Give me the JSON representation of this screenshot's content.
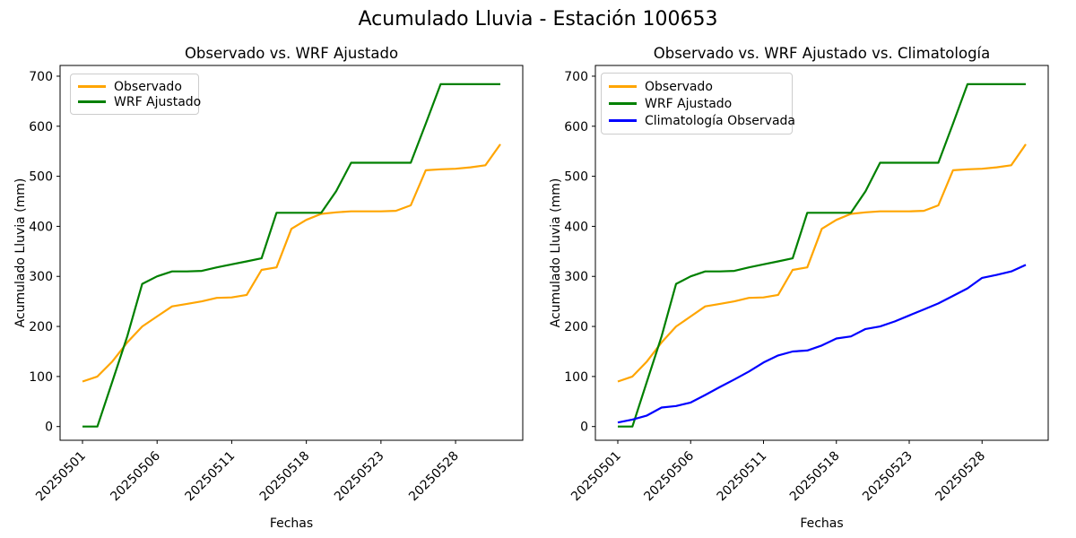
{
  "figure": {
    "suptitle": "Acumulado Lluvia - Estación 100653",
    "background": "#ffffff"
  },
  "axis": {
    "y_ticks": [
      0,
      100,
      200,
      300,
      400,
      500,
      600,
      700
    ],
    "x_tick_indices": [
      0,
      5,
      10,
      15,
      20,
      25
    ]
  },
  "colors": {
    "observado": "#FFA500",
    "wrf_ajustado": "#008000",
    "climatologia": "#0000FF",
    "axes": "#000000",
    "legend_border": "#cccccc"
  },
  "chart_data": [
    {
      "type": "line",
      "title": "Observado vs. WRF Ajustado",
      "xlabel": "Fechas",
      "ylabel": "Acumulado Lluvia (mm)",
      "ylim": [
        0,
        700
      ],
      "grid": false,
      "legend_position": "upper left",
      "x_tick_labels": [
        "20250501",
        "20250506",
        "20250511",
        "20250518",
        "20250523",
        "20250528"
      ],
      "n_points": 29,
      "series": [
        {
          "name": "Observado",
          "color": "#FFA500",
          "values": [
            90,
            100,
            130,
            168,
            200,
            220,
            240,
            245,
            250,
            257,
            258,
            263,
            313,
            318,
            395,
            413,
            425,
            428,
            430,
            430,
            430,
            431,
            442,
            512,
            514,
            515,
            518,
            522,
            564
          ]
        },
        {
          "name": "WRF Ajustado",
          "color": "#008000",
          "values": [
            0,
            0,
            90,
            180,
            285,
            300,
            310,
            310,
            311,
            318,
            324,
            330,
            336,
            427,
            427,
            427,
            427,
            470,
            527,
            527,
            527,
            527,
            527,
            605,
            684,
            684,
            684,
            684,
            684
          ]
        }
      ]
    },
    {
      "type": "line",
      "title": "Observado vs. WRF Ajustado vs. Climatología",
      "xlabel": "Fechas",
      "ylabel": "Acumulado Lluvia (mm)",
      "ylim": [
        0,
        700
      ],
      "grid": false,
      "legend_position": "upper left",
      "x_tick_labels": [
        "20250501",
        "20250506",
        "20250511",
        "20250518",
        "20250523",
        "20250528"
      ],
      "n_points": 29,
      "series": [
        {
          "name": "Observado",
          "color": "#FFA500",
          "values": [
            90,
            100,
            130,
            168,
            200,
            220,
            240,
            245,
            250,
            257,
            258,
            263,
            313,
            318,
            395,
            413,
            425,
            428,
            430,
            430,
            430,
            431,
            442,
            512,
            514,
            515,
            518,
            522,
            564
          ]
        },
        {
          "name": "WRF Ajustado",
          "color": "#008000",
          "values": [
            0,
            0,
            90,
            180,
            285,
            300,
            310,
            310,
            311,
            318,
            324,
            330,
            336,
            427,
            427,
            427,
            427,
            470,
            527,
            527,
            527,
            527,
            527,
            605,
            684,
            684,
            684,
            684,
            684
          ]
        },
        {
          "name": "Climatología Observada",
          "color": "#0000FF",
          "values": [
            8,
            14,
            22,
            38,
            41,
            48,
            63,
            79,
            94,
            110,
            128,
            142,
            150,
            152,
            162,
            176,
            180,
            195,
            200,
            210,
            222,
            234,
            246,
            261,
            276,
            297,
            303,
            310,
            323
          ]
        }
      ]
    }
  ]
}
